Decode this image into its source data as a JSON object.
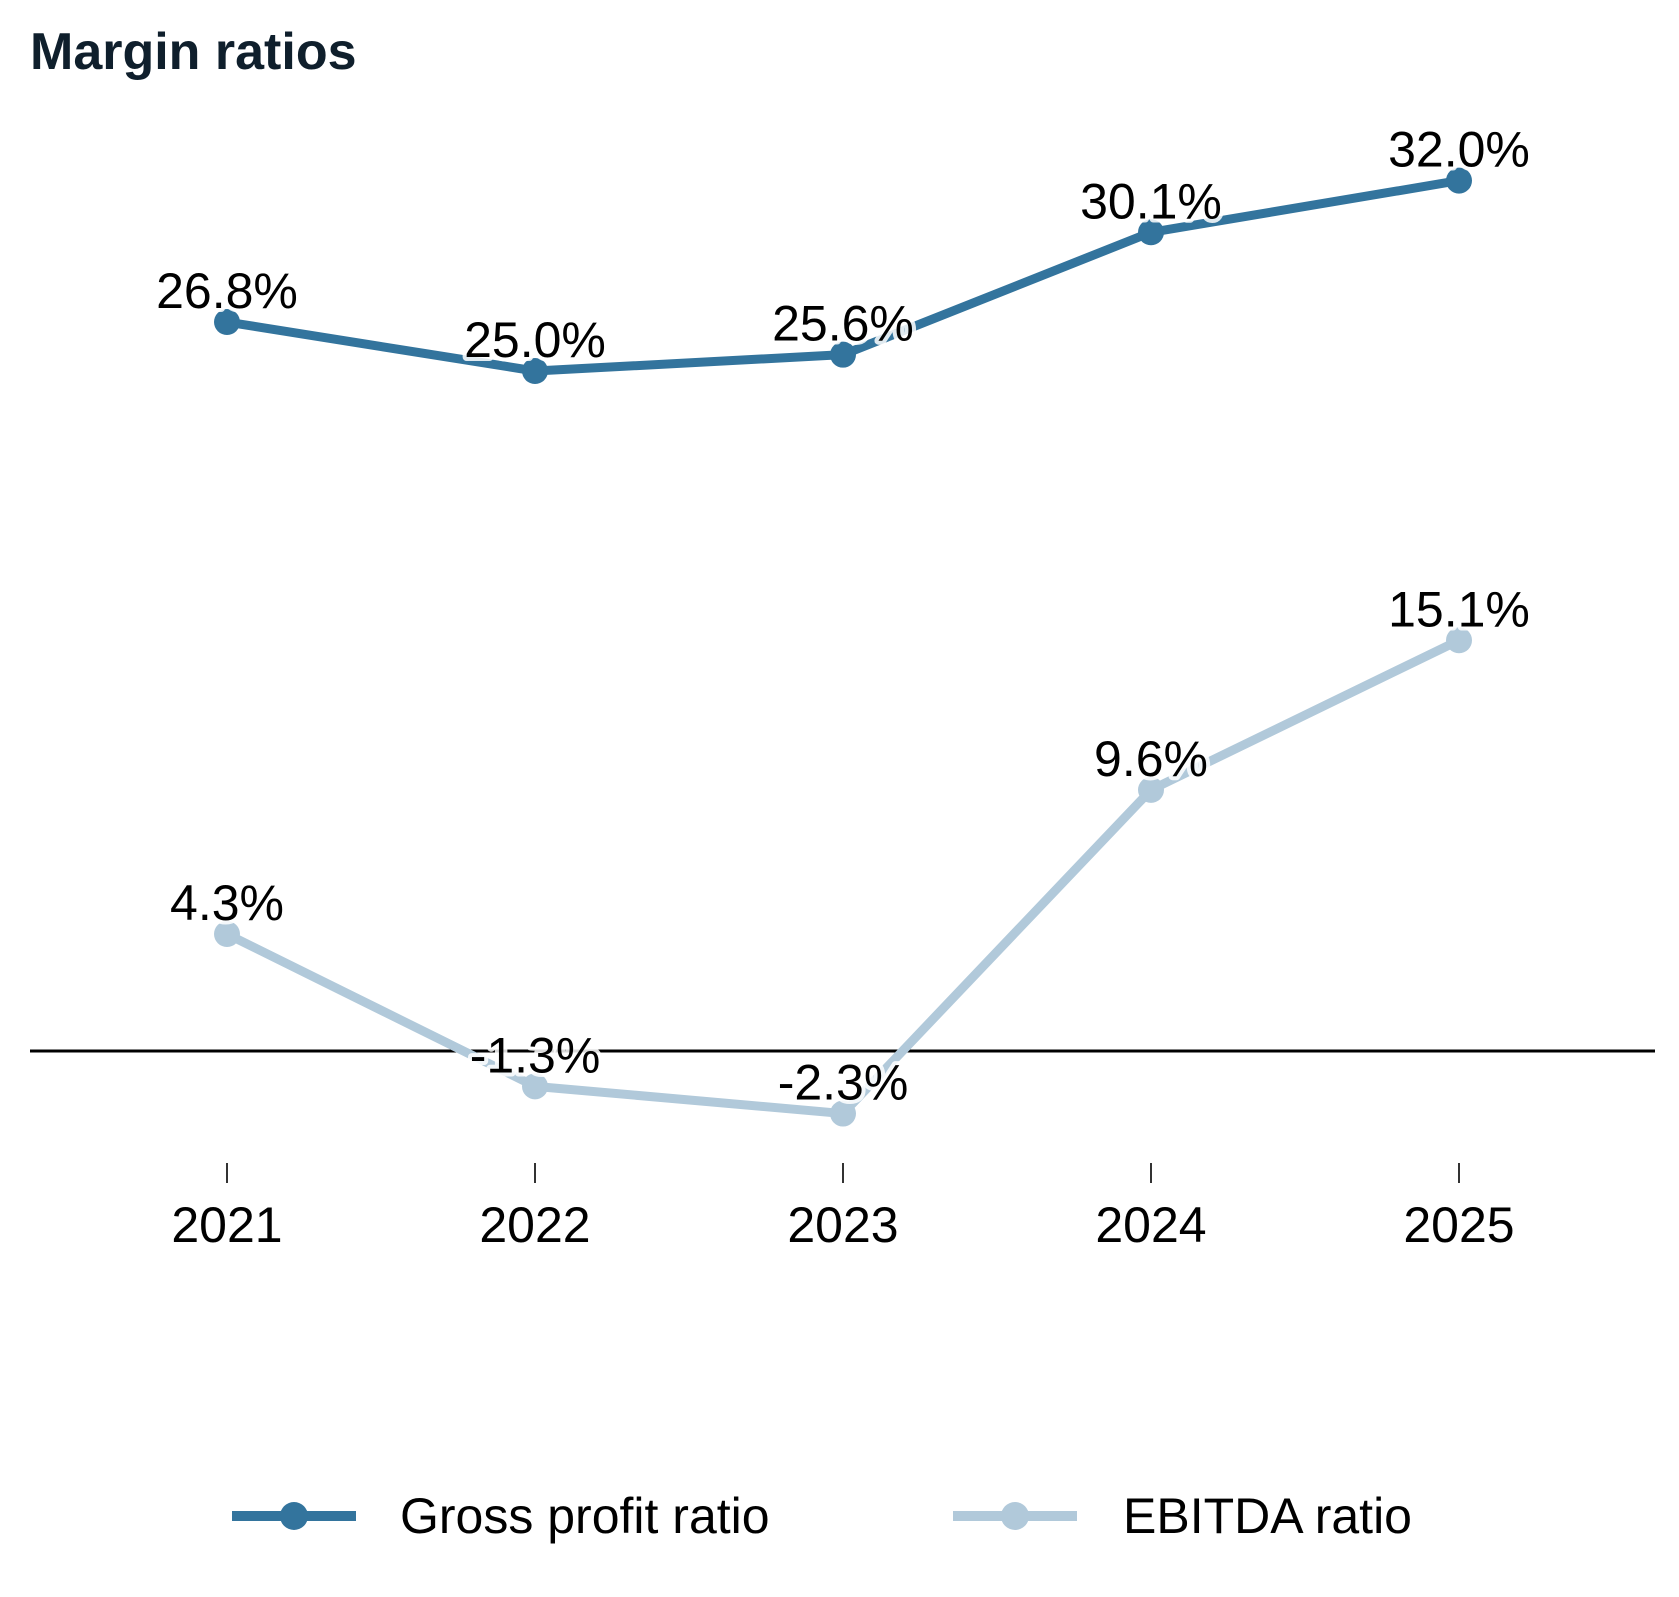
{
  "title": "Margin ratios",
  "chart_data": {
    "type": "line",
    "categories": [
      "2021",
      "2022",
      "2023",
      "2024",
      "2025"
    ],
    "series": [
      {
        "name": "Gross profit ratio",
        "values": [
          26.8,
          25.0,
          25.6,
          30.1,
          32.0
        ],
        "labels": [
          "26.8%",
          "25.0%",
          "25.6%",
          "30.1%",
          "32.0%"
        ],
        "color": "#33749d"
      },
      {
        "name": "EBITDA ratio",
        "values": [
          4.3,
          -1.3,
          -2.3,
          9.6,
          15.1
        ],
        "labels": [
          "4.3%",
          "-1.3%",
          "-2.3%",
          "9.6%",
          "15.1%"
        ],
        "color": "#b1c9da"
      }
    ],
    "zero_line": true,
    "grid": false,
    "legend": "bottom"
  }
}
